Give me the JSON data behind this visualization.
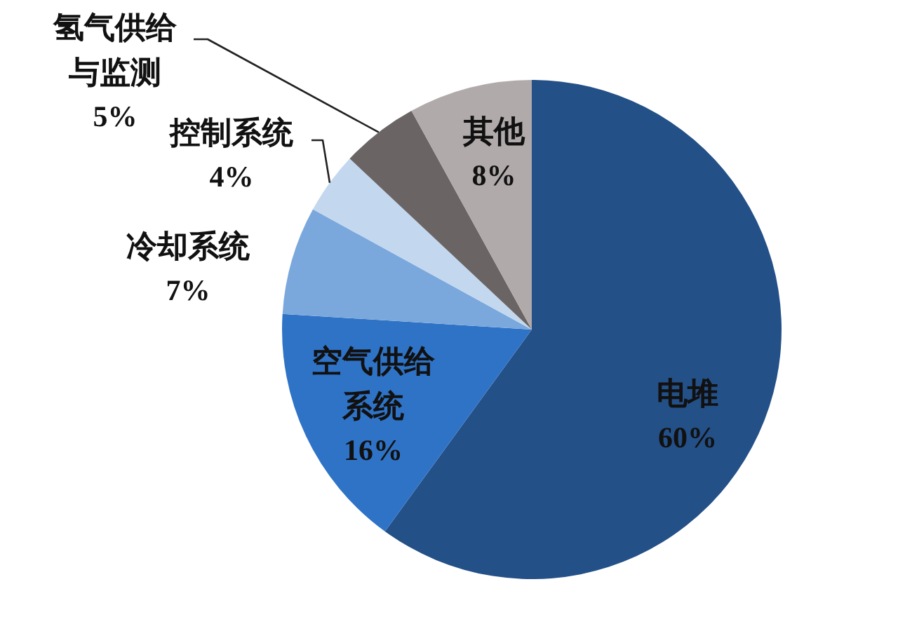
{
  "chart_data": {
    "type": "pie",
    "categories": [
      "电堆",
      "空气供给系统",
      "冷却系统",
      "控制系统",
      "氢气供给与监测",
      "其他"
    ],
    "values": [
      60,
      16,
      7,
      4,
      5,
      8
    ],
    "value_labels": [
      "60%",
      "16%",
      "7%",
      "4%",
      "5%",
      "8%"
    ],
    "colors": [
      "#245088",
      "#2f73c6",
      "#7ba8dc",
      "#c3d8ef",
      "#6a6465",
      "#b1aaaa"
    ]
  }
}
